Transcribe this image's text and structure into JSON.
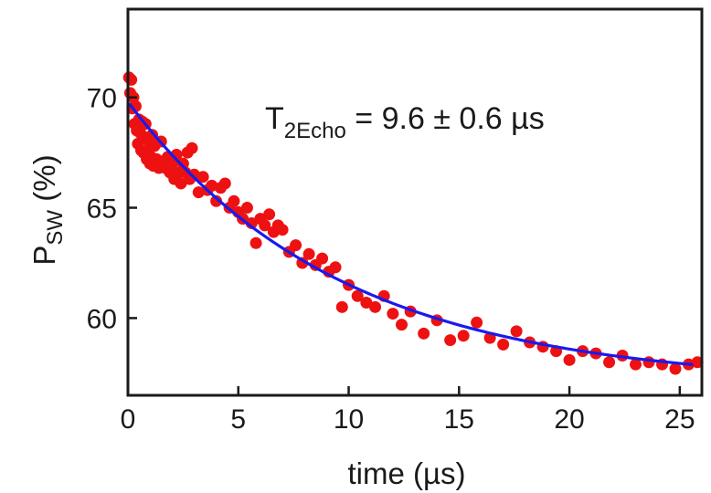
{
  "chart_data": {
    "type": "scatter",
    "title": "",
    "xlabel": "time (µs)",
    "ylabel": {
      "main": "P",
      "sub": "SW",
      "rest": " (%)"
    },
    "xlim": [
      0,
      26
    ],
    "ylim": [
      56.5,
      74
    ],
    "xticks": [
      0,
      5,
      10,
      15,
      20,
      25
    ],
    "yticks": [
      60,
      65,
      70
    ],
    "annotation": {
      "main": "T",
      "sub": "2Echo",
      "rest": " = 9.6 ± 0.6 µs"
    },
    "colors": {
      "points": "#ee1111",
      "fit": "#1a1aee",
      "axis": "#1a1a1a"
    },
    "series": [
      {
        "type": "scatter",
        "x": [
          0.05,
          0.1,
          0.15,
          0.2,
          0.25,
          0.3,
          0.35,
          0.4,
          0.45,
          0.5,
          0.55,
          0.6,
          0.65,
          0.7,
          0.75,
          0.8,
          0.85,
          0.9,
          0.95,
          1.0,
          1.05,
          1.1,
          1.15,
          1.2,
          1.3,
          1.4,
          1.5,
          1.6,
          1.7,
          1.8,
          1.9,
          2.0,
          2.1,
          2.2,
          2.3,
          2.4,
          2.5,
          2.6,
          2.7,
          2.8,
          2.9,
          3.0,
          3.2,
          3.4,
          3.6,
          3.8,
          4.0,
          4.2,
          4.4,
          4.6,
          4.8,
          5.0,
          5.2,
          5.4,
          5.6,
          5.8,
          6.0,
          6.2,
          6.4,
          6.6,
          6.8,
          7.0,
          7.3,
          7.6,
          7.9,
          8.2,
          8.5,
          8.8,
          9.1,
          9.4,
          9.7,
          10.0,
          10.4,
          10.8,
          11.2,
          11.6,
          12.0,
          12.4,
          12.8,
          13.4,
          14.0,
          14.6,
          15.2,
          15.8,
          16.4,
          17.0,
          17.6,
          18.2,
          18.8,
          19.4,
          20.0,
          20.6,
          21.2,
          21.8,
          22.4,
          23.0,
          23.6,
          24.2,
          24.8,
          25.4,
          25.8
        ],
        "y": [
          70.9,
          70.2,
          70.8,
          69.5,
          70.0,
          68.8,
          69.6,
          68.5,
          67.9,
          69.0,
          68.4,
          67.6,
          68.9,
          67.5,
          68.2,
          68.8,
          67.2,
          67.6,
          68.0,
          67.0,
          67.3,
          68.3,
          66.9,
          67.8,
          67.2,
          66.8,
          68.0,
          67.1,
          66.8,
          67.3,
          66.6,
          67.0,
          66.3,
          67.4,
          66.6,
          66.1,
          67.0,
          66.6,
          67.5,
          66.3,
          67.7,
          66.5,
          65.7,
          66.4,
          65.8,
          66.0,
          65.3,
          65.9,
          66.1,
          65.0,
          65.3,
          64.8,
          64.5,
          65.0,
          64.3,
          63.4,
          64.5,
          64.2,
          64.7,
          63.9,
          64.2,
          64.0,
          63.0,
          63.3,
          62.5,
          62.9,
          62.4,
          62.7,
          62.1,
          62.3,
          60.5,
          61.5,
          61.0,
          60.7,
          60.5,
          61.0,
          60.2,
          59.7,
          60.3,
          59.3,
          59.9,
          59.0,
          59.2,
          59.8,
          59.1,
          58.8,
          59.4,
          58.9,
          58.7,
          58.5,
          58.1,
          58.5,
          58.4,
          58.0,
          58.3,
          57.9,
          58.0,
          57.9,
          57.7,
          57.9,
          58.0
        ]
      },
      {
        "type": "line",
        "name": "fit",
        "model": "exponential decay",
        "tau": 9.6,
        "y_inf": 57.0,
        "y0": 69.8
      }
    ]
  }
}
